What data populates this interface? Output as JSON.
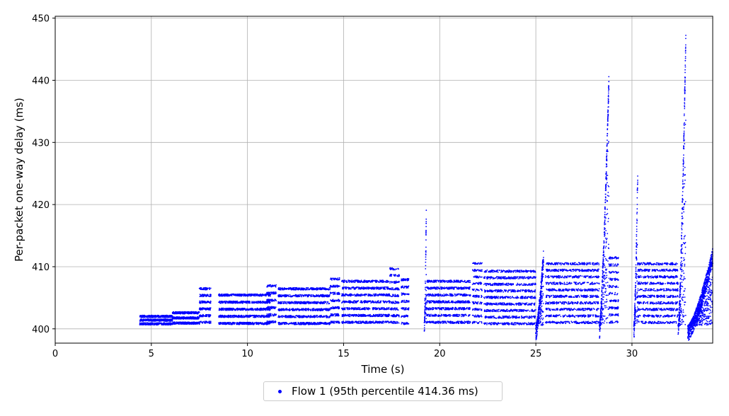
{
  "chart_data": {
    "type": "scatter",
    "xlabel": "Time (s)",
    "ylabel": "Per-packet one-way delay (ms)",
    "xlim": [
      0,
      34.2
    ],
    "ylim": [
      397.7,
      450.3
    ],
    "xticks": [
      0,
      5,
      10,
      15,
      20,
      25,
      30
    ],
    "yticks": [
      400,
      410,
      420,
      430,
      440,
      450
    ],
    "grid": true,
    "legend_position": "bottom-center",
    "series": [
      {
        "name": "Flow 1 (95th percentile 414.36 ms)",
        "color": "#0000ff",
        "segments": [
          {
            "x": [
              4.4,
              6.1
            ],
            "y": [
              400.5,
              402.3
            ]
          },
          {
            "x": [
              6.1,
              7.5
            ],
            "y": [
              400.5,
              403
            ]
          },
          {
            "x": [
              7.5,
              8.1
            ],
            "y": [
              400.5,
              407
            ]
          },
          {
            "x": [
              8.5,
              11.2
            ],
            "y": [
              400.3,
              406
            ]
          },
          {
            "x": [
              11.0,
              11.5
            ],
            "y": [
              400.5,
              407.5
            ]
          },
          {
            "x": [
              11.6,
              14.3
            ],
            "y": [
              400.3,
              407
            ]
          },
          {
            "x": [
              14.3,
              14.8
            ],
            "y": [
              400.5,
              408.6
            ]
          },
          {
            "x": [
              14.9,
              17.4
            ],
            "y": [
              400.5,
              408.2
            ]
          },
          {
            "x": [
              17.4,
              17.9
            ],
            "y": [
              400.5,
              410.2
            ]
          },
          {
            "x": [
              18.0,
              18.4
            ],
            "y": [
              400.3,
              408.5
            ]
          },
          {
            "x": [
              19.2,
              19.3
            ],
            "y": [
              401,
              419.3
            ]
          },
          {
            "x": [
              19.3,
              21.6
            ],
            "y": [
              400.5,
              408.2
            ]
          },
          {
            "x": [
              21.7,
              22.2
            ],
            "y": [
              400.5,
              411
            ]
          },
          {
            "x": [
              22.3,
              25.0
            ],
            "y": [
              400.3,
              409.8
            ]
          },
          {
            "x": [
              25.0,
              25.4
            ],
            "y": [
              400.5,
              413
            ]
          },
          {
            "x": [
              25.5,
              28.3
            ],
            "y": [
              400.5,
              411
            ]
          },
          {
            "x": [
              28.3,
              28.8
            ],
            "y": [
              400.5,
              441
            ]
          },
          {
            "x": [
              28.8,
              29.3
            ],
            "y": [
              400.5,
              412
            ]
          },
          {
            "x": [
              30.1,
              30.3
            ],
            "y": [
              400.5,
              426
            ]
          },
          {
            "x": [
              30.3,
              32.4
            ],
            "y": [
              400.5,
              411
            ]
          },
          {
            "x": [
              32.4,
              32.8
            ],
            "y": [
              400.5,
              447.8
            ]
          },
          {
            "x": [
              32.9,
              34.2
            ],
            "y": [
              400.5,
              413
            ]
          }
        ]
      }
    ]
  }
}
